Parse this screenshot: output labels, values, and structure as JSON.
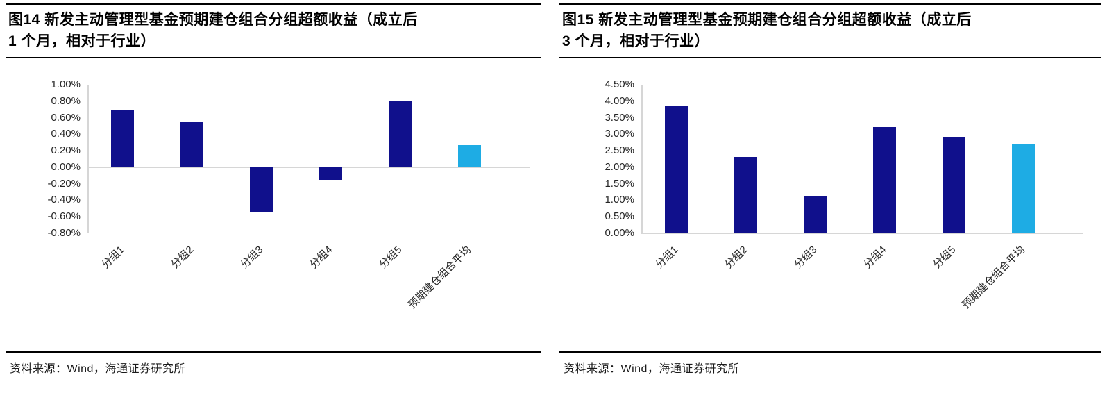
{
  "colors": {
    "bar_navy": "#10108C",
    "bar_lightblue": "#1EACE4",
    "axis_gray": "#d6d6d6",
    "rule_black": "#000000"
  },
  "chart_data": [
    {
      "type": "bar",
      "title": "图14 新发主动管理型基金预期建仓组合分组超额收益（成立后1 个月，相对于行业）",
      "title_lines": [
        "图14 新发主动管理型基金预期建仓组合分组超额收益（成立后",
        "1 个月，相对于行业）"
      ],
      "categories": [
        "分组1",
        "分组2",
        "分组3",
        "分组4",
        "分组5",
        "预期建仓组合平均"
      ],
      "values": [
        0.69,
        0.55,
        -0.55,
        -0.15,
        0.8,
        0.27
      ],
      "value_unit": "%",
      "ylim": [
        -0.8,
        1.0
      ],
      "ytick_step": 0.2,
      "ytick_labels": [
        "1.00%",
        "0.80%",
        "0.60%",
        "0.40%",
        "0.20%",
        "0.00%",
        "-0.20%",
        "-0.40%",
        "-0.60%",
        "-0.80%"
      ],
      "bar_colors": [
        "#10108C",
        "#10108C",
        "#10108C",
        "#10108C",
        "#10108C",
        "#1EACE4"
      ],
      "grid": false,
      "legend": "none",
      "source": "资料来源：Wind，海通证券研究所"
    },
    {
      "type": "bar",
      "title": "图15 新发主动管理型基金预期建仓组合分组超额收益（成立后3 个月，相对于行业）",
      "title_lines": [
        "图15 新发主动管理型基金预期建仓组合分组超额收益（成立后",
        "3 个月，相对于行业）"
      ],
      "categories": [
        "分组1",
        "分组2",
        "分组3",
        "分组4",
        "分组5",
        "预期建仓组合平均"
      ],
      "values": [
        3.87,
        2.32,
        1.14,
        3.22,
        2.92,
        2.69
      ],
      "value_unit": "%",
      "ylim": [
        0.0,
        4.5
      ],
      "ytick_step": 0.5,
      "ytick_labels": [
        "4.50%",
        "4.00%",
        "3.50%",
        "3.00%",
        "2.50%",
        "2.00%",
        "1.50%",
        "1.00%",
        "0.50%",
        "0.00%"
      ],
      "bar_colors": [
        "#10108C",
        "#10108C",
        "#10108C",
        "#10108C",
        "#10108C",
        "#1EACE4"
      ],
      "grid": false,
      "legend": "none",
      "source": "资料来源：Wind，海通证券研究所"
    }
  ]
}
